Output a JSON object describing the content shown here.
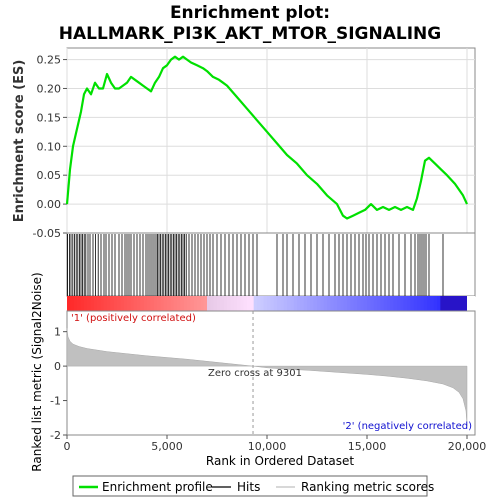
{
  "chart_data": {
    "type": "line",
    "title_line1": "Enrichment plot:",
    "title_line2": "HALLMARK_PI3K_AKT_MTOR_SIGNALING",
    "top_panel": {
      "ylabel": "Enrichment score (ES)",
      "ylim": [
        -0.05,
        0.27
      ],
      "yticks": [
        "0.25",
        "0.20",
        "0.15",
        "0.10",
        "0.05",
        "0.00",
        "-0.05"
      ],
      "ytick_values": [
        0.25,
        0.2,
        0.15,
        0.1,
        0.05,
        0.0,
        -0.05
      ],
      "series": [
        {
          "name": "Enrichment profile",
          "color": "#00e000",
          "x": [
            0,
            150,
            300,
            500,
            700,
            850,
            1000,
            1200,
            1400,
            1600,
            1800,
            2000,
            2200,
            2400,
            2600,
            2800,
            3000,
            3200,
            3400,
            3600,
            3800,
            4000,
            4200,
            4400,
            4600,
            4800,
            5000,
            5200,
            5400,
            5600,
            5800,
            6000,
            6200,
            6500,
            6800,
            7000,
            7300,
            7600,
            7800,
            8000,
            8500,
            9000,
            9500,
            10000,
            10500,
            11000,
            11500,
            12000,
            12500,
            13000,
            13500,
            13800,
            14000,
            14300,
            14600,
            14900,
            15200,
            15500,
            15800,
            16100,
            16400,
            16700,
            17000,
            17300,
            17500,
            17700,
            17900,
            18100,
            18400,
            18700,
            19000,
            19400,
            19800,
            20000
          ],
          "y": [
            0.0,
            0.06,
            0.1,
            0.13,
            0.16,
            0.19,
            0.2,
            0.19,
            0.21,
            0.2,
            0.2,
            0.225,
            0.21,
            0.2,
            0.2,
            0.205,
            0.21,
            0.22,
            0.215,
            0.21,
            0.205,
            0.2,
            0.195,
            0.21,
            0.22,
            0.235,
            0.24,
            0.25,
            0.255,
            0.25,
            0.255,
            0.25,
            0.245,
            0.24,
            0.235,
            0.23,
            0.22,
            0.215,
            0.21,
            0.205,
            0.185,
            0.165,
            0.145,
            0.125,
            0.105,
            0.085,
            0.07,
            0.05,
            0.035,
            0.015,
            0.0,
            -0.02,
            -0.025,
            -0.02,
            -0.015,
            -0.01,
            0.0,
            -0.01,
            -0.005,
            -0.01,
            -0.005,
            -0.01,
            -0.005,
            -0.01,
            0.01,
            0.04,
            0.075,
            0.08,
            0.07,
            0.06,
            0.05,
            0.035,
            0.015,
            0.0
          ]
        }
      ]
    },
    "hits": {
      "name": "Hits",
      "positions": [
        30,
        120,
        200,
        290,
        380,
        460,
        540,
        620,
        700,
        780,
        860,
        940,
        1050,
        1150,
        1300,
        1420,
        1560,
        1700,
        1850,
        1950,
        2100,
        2250,
        2400,
        2600,
        2750,
        2900,
        3000,
        3100,
        3200,
        3350,
        3500,
        3650,
        3800,
        3950,
        4050,
        4150,
        4250,
        4350,
        4450,
        4520,
        4600,
        4680,
        4760,
        4840,
        4920,
        5000,
        5080,
        5160,
        5240,
        5320,
        5400,
        5480,
        5560,
        5640,
        5720,
        5800,
        5880,
        5960,
        6100,
        6250,
        6400,
        6550,
        6700,
        6850,
        7000,
        7150,
        7300,
        7500,
        7700,
        7900,
        8100,
        8300,
        8500,
        8700,
        8900,
        9100,
        9300,
        9500,
        10500,
        10800,
        11000,
        11300,
        11600,
        11900,
        12200,
        12500,
        12800,
        13100,
        13400,
        13600,
        13800,
        14000,
        14200,
        14400,
        14600,
        14800,
        14950,
        15100,
        15300,
        15500,
        15700,
        15900,
        16100,
        16300,
        16600,
        16900,
        17200,
        17400,
        17550,
        17650,
        17750,
        17850,
        17950,
        18100,
        18800
      ]
    },
    "bottom_panel": {
      "ylabel": "Ranked list metric (Signal2Noise)",
      "ylim": [
        -2,
        1.6
      ],
      "yticks": [
        "1",
        "0",
        "-1",
        "-2"
      ],
      "ytick_values": [
        1,
        0,
        -1,
        -2
      ],
      "series": [
        {
          "name": "Ranking metric scores",
          "color": "#c0c0c0",
          "x": [
            0,
            50,
            150,
            300,
            600,
            1000,
            2000,
            3000,
            4000,
            5000,
            6000,
            7000,
            8000,
            9301,
            10000,
            11000,
            12000,
            13000,
            14000,
            15000,
            16000,
            17000,
            18000,
            18800,
            19300,
            19600,
            19800,
            19950,
            20000
          ],
          "y": [
            1.1,
            0.85,
            0.72,
            0.64,
            0.57,
            0.51,
            0.42,
            0.36,
            0.3,
            0.25,
            0.2,
            0.14,
            0.08,
            0.0,
            -0.05,
            -0.09,
            -0.12,
            -0.16,
            -0.2,
            -0.24,
            -0.29,
            -0.35,
            -0.43,
            -0.52,
            -0.63,
            -0.76,
            -0.95,
            -1.3,
            -1.75
          ]
        }
      ],
      "zero_cross_label": "Zero cross at 9301",
      "zero_cross_value": 9301,
      "pos_label": "'1' (positively correlated)",
      "neg_label": "'2' (negatively correlated)"
    },
    "xlabel": "Rank in Ordered Dataset",
    "xlim": [
      0,
      20400
    ],
    "xticks": [
      "0",
      "5,000",
      "10,000",
      "15,000",
      "20,000"
    ],
    "xtick_values": [
      0,
      5000,
      10000,
      15000,
      20000
    ],
    "legend": {
      "placement": "bottom",
      "items": [
        {
          "label": "Enrichment profile",
          "color": "#00e000"
        },
        {
          "label": "Hits",
          "color": "#000000"
        },
        {
          "label": "Ranking metric scores",
          "color": "#c0c0c0"
        }
      ]
    },
    "colors": {
      "profile": "#00e000",
      "positive": "#e02020",
      "negative": "#2020e0",
      "metric_fill": "#c0c0c0"
    }
  }
}
